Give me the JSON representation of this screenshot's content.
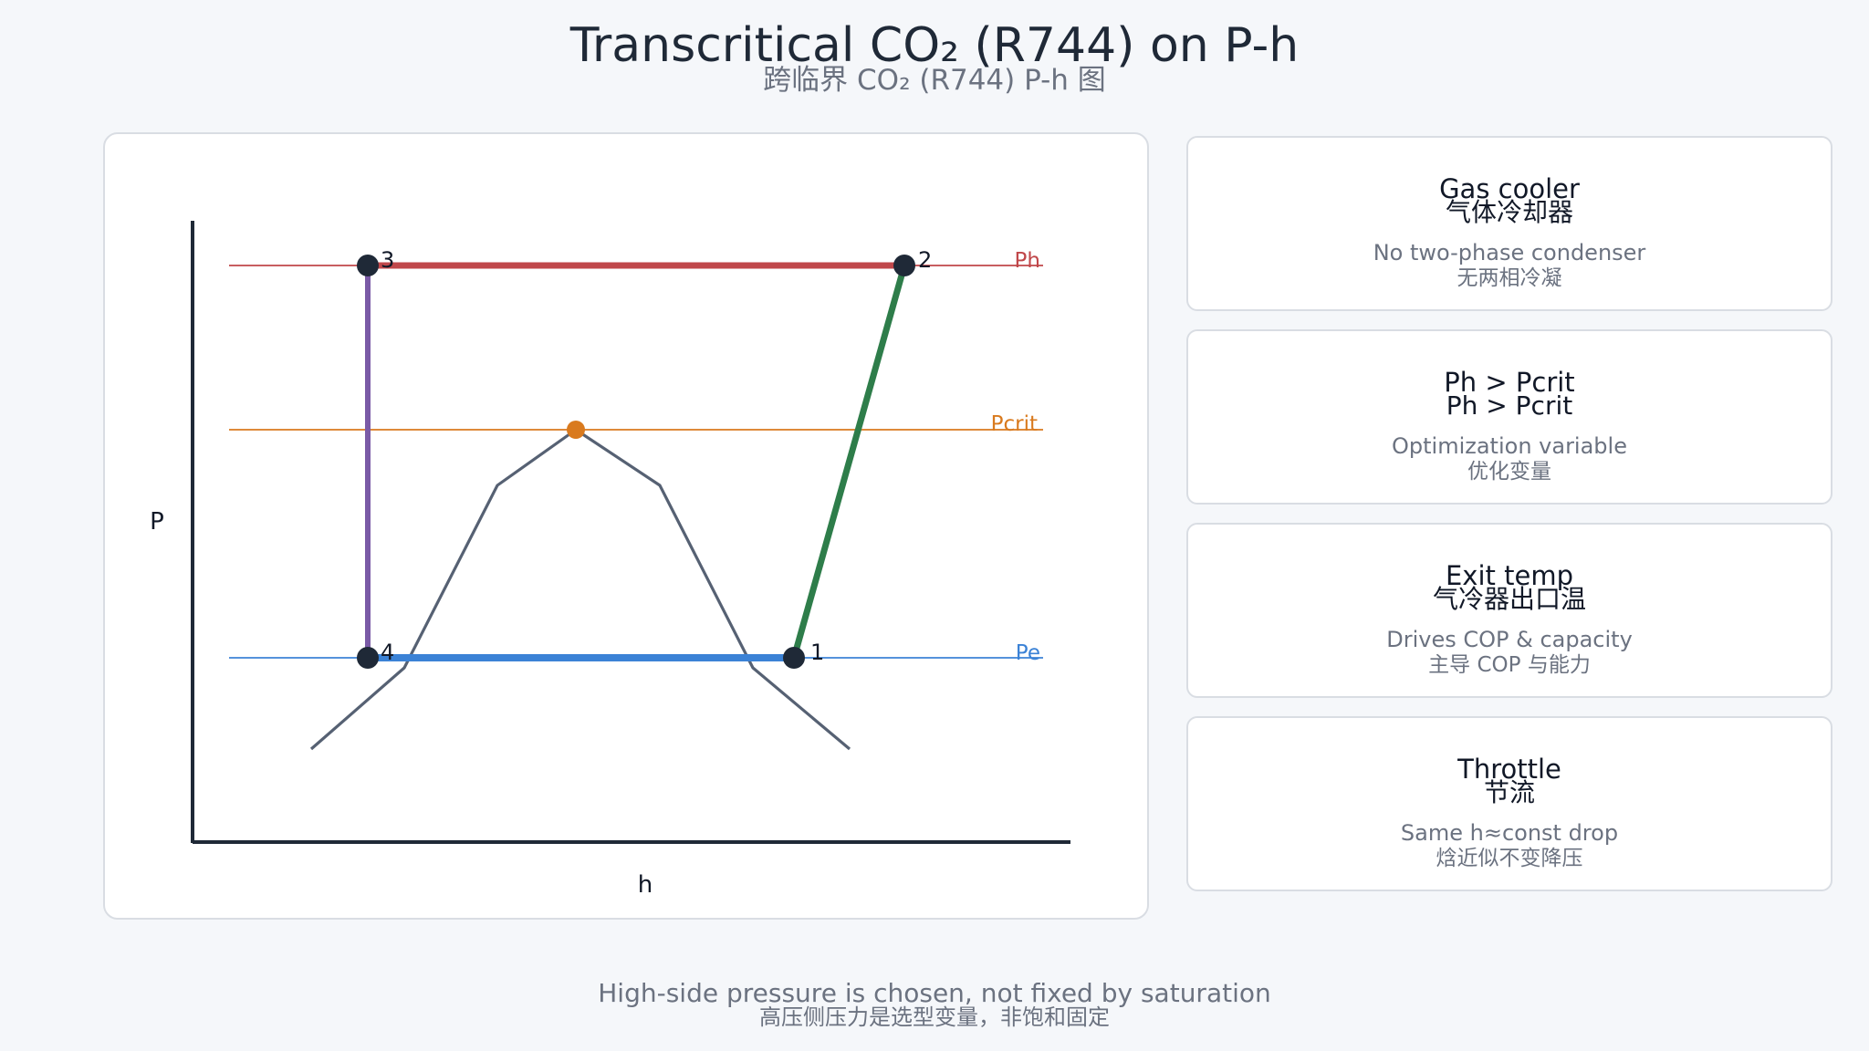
{
  "header": {
    "title": "Transcritical CO₂ (R744) on P-h",
    "subtitle": "跨临界 CO₂ (R744) P-h 图"
  },
  "diagram": {
    "axis_y_label": "P",
    "axis_x_label": "h",
    "pressure_lines": {
      "high": {
        "label": "Ph",
        "color": "#c0474a"
      },
      "critical": {
        "label": "Pcrit",
        "color": "#d97a1e"
      },
      "evaporator": {
        "label": "Pe",
        "color": "#3b82d6"
      }
    },
    "state_points": {
      "p1": "1",
      "p2": "2",
      "p3": "3",
      "p4": "4"
    },
    "process_colors": {
      "gas_cooler": "#c0474a",
      "compression": "#2e7d4a",
      "expansion": "#7a5aa6",
      "evaporation": "#3b82d6",
      "dome": "#566173",
      "critical_point": "#d97a1e",
      "state_point": "#1f2937"
    }
  },
  "cards": [
    {
      "title_en": "Gas cooler",
      "title_zh": "气体冷却器",
      "desc_en": "No two-phase condenser",
      "desc_zh": "无两相冷凝"
    },
    {
      "title_en": "Ph > Pcrit",
      "title_zh": "Ph > Pcrit",
      "desc_en": "Optimization variable",
      "desc_zh": "优化变量"
    },
    {
      "title_en": "Exit temp",
      "title_zh": "气冷器出口温",
      "desc_en": "Drives COP & capacity",
      "desc_zh": "主导 COP 与能力"
    },
    {
      "title_en": "Throttle",
      "title_zh": "节流",
      "desc_en": "Same h≈const drop",
      "desc_zh": "焓近似不变降压"
    }
  ],
  "footer": {
    "note_en": "High-side pressure is chosen, not fixed by saturation",
    "note_zh": "高压侧压力是选型变量，非饱和固定"
  }
}
